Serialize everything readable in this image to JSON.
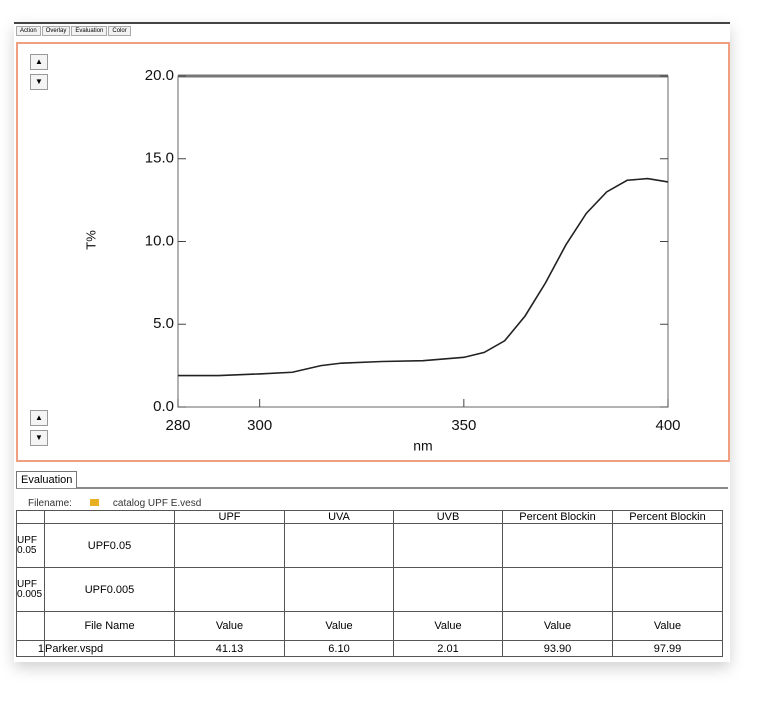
{
  "tabs": [
    "Action",
    "Overlay",
    "Evaluation",
    "Color"
  ],
  "chart_data": {
    "type": "line",
    "x_label": "nm",
    "y_label": "T%",
    "x": [
      280,
      290,
      300,
      308,
      315,
      320,
      330,
      340,
      350,
      355,
      360,
      365,
      370,
      375,
      380,
      385,
      390,
      395,
      400
    ],
    "values": [
      1.9,
      1.9,
      2.0,
      2.1,
      2.5,
      2.65,
      2.75,
      2.8,
      3.0,
      3.3,
      4.0,
      5.5,
      7.5,
      9.8,
      11.7,
      13.0,
      13.7,
      13.8,
      13.6
    ],
    "color": "#222222",
    "xlim": [
      280,
      400
    ],
    "xticks": [
      280,
      300,
      350,
      400
    ],
    "ylim": [
      0,
      20
    ],
    "yticks": [
      {
        "value": 0,
        "label": "0.0"
      },
      {
        "value": 5,
        "label": "5.0"
      },
      {
        "value": 10,
        "label": "10.0"
      },
      {
        "value": 15,
        "label": "15.0"
      },
      {
        "value": 20,
        "label": "20.0"
      }
    ]
  },
  "panel": {
    "tab": "Evaluation",
    "filename_label": "Filename:",
    "filename": "catalog UPF E.vesd"
  },
  "table": {
    "columns": [
      "UPF",
      "UVA",
      "UVB",
      "Percent Blockin",
      "Percent Blockin"
    ],
    "rows": [
      {
        "id": "UPF0.05",
        "name": "UPF0.05"
      },
      {
        "id": "UPF0.005",
        "name": "UPF0.005"
      }
    ],
    "subheader": [
      "File Name",
      "Value",
      "Value",
      "Value",
      "Value",
      "Value"
    ],
    "data": [
      [
        "1",
        "Parker.vspd",
        "41.13",
        "6.10",
        "2.01",
        "93.90",
        "97.99"
      ]
    ]
  }
}
